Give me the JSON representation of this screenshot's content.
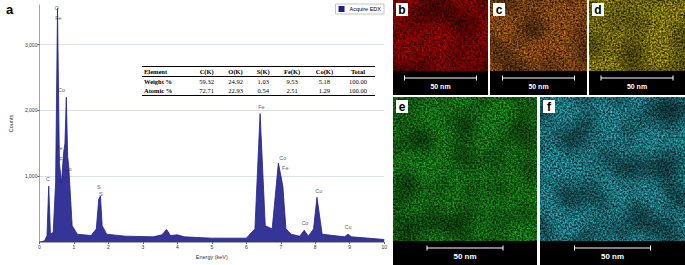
{
  "chart_data": {
    "type": "line",
    "panel_label": "a",
    "x_label": "Energy (keV)",
    "y_label": "Counts",
    "xlim": [
      0,
      10
    ],
    "xticks": [
      0,
      1,
      2,
      3,
      4,
      5,
      6,
      7,
      8,
      9,
      10
    ],
    "ylim": [
      0,
      3600
    ],
    "yticks": [
      1000,
      2000,
      3000
    ],
    "grid": true,
    "legend": "top-right",
    "series": [
      {
        "name": "Acquire EDX",
        "color": "#1f1f8c",
        "x": [
          0,
          0.15,
          0.22,
          0.27,
          0.32,
          0.4,
          0.47,
          0.525,
          0.58,
          0.64,
          0.7,
          0.74,
          0.78,
          0.82,
          0.85,
          0.9,
          0.95,
          1.1,
          1.5,
          1.65,
          1.72,
          1.77,
          1.82,
          1.95,
          2.5,
          3.3,
          3.55,
          3.69,
          3.8,
          4.0,
          4.2,
          5.0,
          6.0,
          6.25,
          6.4,
          6.55,
          6.75,
          6.93,
          7.06,
          7.15,
          7.3,
          7.55,
          7.68,
          7.8,
          7.95,
          8.05,
          8.2,
          8.85,
          8.95,
          9.05,
          10
        ],
        "values": [
          0,
          20,
          100,
          850,
          120,
          150,
          900,
          3550,
          1200,
          900,
          1350,
          1500,
          2200,
          1300,
          1150,
          700,
          250,
          120,
          100,
          200,
          650,
          700,
          250,
          120,
          90,
          80,
          110,
          190,
          100,
          110,
          80,
          60,
          60,
          200,
          1950,
          250,
          200,
          1200,
          850,
          200,
          120,
          90,
          180,
          90,
          200,
          680,
          120,
          80,
          120,
          80,
          40
        ]
      }
    ],
    "annotations": [
      {
        "text": "O",
        "x": 0.5,
        "y": 3550
      },
      {
        "text": "Fe",
        "x": 0.55,
        "y": 3400
      },
      {
        "text": "Co",
        "x": 0.64,
        "y": 2310
      },
      {
        "text": "Fe",
        "x": 0.58,
        "y": 1425
      },
      {
        "text": "Fe",
        "x": 0.67,
        "y": 1260
      },
      {
        "text": "Co",
        "x": 0.83,
        "y": 1110
      },
      {
        "text": "C",
        "x": 0.25,
        "y": 960
      },
      {
        "text": "S",
        "x": 1.72,
        "y": 840
      },
      {
        "text": "S",
        "x": 1.78,
        "y": 735
      },
      {
        "text": "Fe",
        "x": 6.44,
        "y": 2050
      },
      {
        "text": "Co",
        "x": 7.06,
        "y": 1280
      },
      {
        "text": "Fe",
        "x": 7.13,
        "y": 1130
      },
      {
        "text": "Co",
        "x": 7.7,
        "y": 290
      },
      {
        "text": "Cu",
        "x": 8.1,
        "y": 780
      },
      {
        "text": "Cu",
        "x": 8.95,
        "y": 230
      }
    ],
    "table": {
      "header": [
        "Element",
        "C(K)",
        "O(K)",
        "S(K)",
        "Fe(K)",
        "Co(K)",
        "Total"
      ],
      "rows": [
        [
          "Weight %",
          "59.32",
          "24.92",
          "1.03",
          "9.53",
          "5.18",
          "100.00"
        ],
        [
          "Atomic %",
          "72.71",
          "22.93",
          "0.54",
          "2.51",
          "1.29",
          "100.00"
        ]
      ]
    }
  },
  "maps": [
    {
      "label": "b",
      "color": "#d40000",
      "scale_bar": "50 nm"
    },
    {
      "label": "c",
      "color": "#e07a1c",
      "scale_bar": "50 nm"
    },
    {
      "label": "d",
      "color": "#d6c400",
      "scale_bar": "50 nm"
    },
    {
      "label": "e",
      "color": "#20c020",
      "scale_bar": "50 nm"
    },
    {
      "label": "f",
      "color": "#2ecbdc",
      "scale_bar": "50 nm"
    }
  ]
}
